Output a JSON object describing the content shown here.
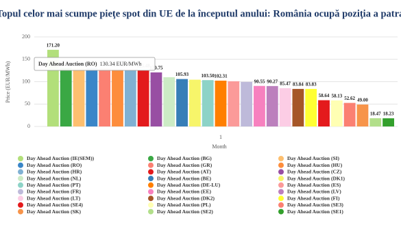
{
  "chart_data": {
    "type": "bar",
    "title": "Topul celor mai scumpe pieţe spot din UE de la începutul anului: România ocupă poziţia a patra",
    "xlabel": "Month",
    "ylabel": "Price (EUR/MWh)",
    "categories": [
      "1"
    ],
    "ylim": [
      0,
      200
    ],
    "yticks": [
      0,
      50,
      100,
      150,
      200
    ],
    "grid": true,
    "tooltip": {
      "series": "Day Ahead Auction (RO)",
      "value": "130.34 EUR/MWh"
    },
    "series": [
      {
        "name": "Day Ahead Auction (IE(SEM))",
        "color": "#b2df7a",
        "values": [
          171.2
        ],
        "value_labels": [
          "171.20"
        ]
      },
      {
        "name": "Day Ahead Auction (BG)",
        "color": "#3aa844",
        "values": [
          130.6
        ]
      },
      {
        "name": "Day Ahead Auction (SI)",
        "color": "#fdbf6f",
        "values": [
          130.4
        ]
      },
      {
        "name": "Day Ahead Auction (RO)",
        "color": "#3a86c8",
        "values": [
          130.34
        ]
      },
      {
        "name": "Day Ahead Auction (GR)",
        "color": "#fb8072",
        "values": [
          129.5
        ]
      },
      {
        "name": "Day Ahead Auction (HU)",
        "color": "#fd8d3c",
        "values": [
          127.92
        ],
        "value_labels": [
          "127.92"
        ]
      },
      {
        "name": "Day Ahead Auction (HR)",
        "color": "#80b1d3",
        "values": [
          126.5
        ]
      },
      {
        "name": "Day Ahead Auction (AT)",
        "color": "#e31a1c",
        "values": [
          125.48
        ],
        "value_labels": [
          "125.48"
        ]
      },
      {
        "name": "Day Ahead Auction (CZ)",
        "color": "#984ea3",
        "values": [
          120.75
        ],
        "value_labels": [
          "120.75"
        ]
      },
      {
        "name": "Day Ahead Auction (NL)",
        "color": "#ccebc5",
        "values": [
          110.0
        ]
      },
      {
        "name": "Day Ahead Auction (BE)",
        "color": "#377eb8",
        "values": [
          105.93
        ],
        "value_labels": [
          "105.93"
        ]
      },
      {
        "name": "Day Ahead Auction (DK1)",
        "color": "#f7f56a",
        "values": [
          104.5
        ]
      },
      {
        "name": "Day Ahead Auction (PT)",
        "color": "#8dd3c7",
        "values": [
          103.5
        ],
        "value_labels": [
          "103.50"
        ]
      },
      {
        "name": "Day Ahead Auction (DE-LU)",
        "color": "#ff7f00",
        "values": [
          102.31
        ],
        "value_labels": [
          "102.31"
        ]
      },
      {
        "name": "Day Ahead Auction (ES)",
        "color": "#fb9a99",
        "values": [
          101.0
        ]
      },
      {
        "name": "Day Ahead Auction (FR)",
        "color": "#bebada",
        "values": [
          99.5
        ]
      },
      {
        "name": "Day Ahead Auction (EE)",
        "color": "#f781bf",
        "values": [
          90.55
        ],
        "value_labels": [
          "90.55"
        ]
      },
      {
        "name": "Day Ahead Auction (LV)",
        "color": "#bc80bd",
        "values": [
          90.27
        ],
        "value_labels": [
          "90.27"
        ]
      },
      {
        "name": "Day Ahead Auction (LT)",
        "color": "#fccde5",
        "values": [
          85.47
        ],
        "value_labels": [
          "85.47"
        ]
      },
      {
        "name": "Day Ahead Auction (DK2)",
        "color": "#a65628",
        "values": [
          83.84
        ],
        "value_labels": [
          "83.84"
        ]
      },
      {
        "name": "Day Ahead Auction (FI)",
        "color": "#ffff33",
        "values": [
          83.83
        ],
        "value_labels": [
          "83.83"
        ]
      },
      {
        "name": "Day Ahead Auction (SE4)",
        "color": "#e41a1c",
        "values": [
          58.64
        ],
        "value_labels": [
          "58.64"
        ]
      },
      {
        "name": "Day Ahead Auction (PL)",
        "color": "#ffffb3",
        "values": [
          58.13
        ],
        "value_labels": [
          "58.13"
        ]
      },
      {
        "name": "Day Ahead Auction (SE3)",
        "color": "#fb8072",
        "values": [
          52.62
        ],
        "value_labels": [
          "52.62"
        ]
      },
      {
        "name": "Day Ahead Auction (SK)",
        "color": "#f7944a",
        "values": [
          49.0
        ],
        "value_labels": [
          "49.00"
        ]
      },
      {
        "name": "Day Ahead Auction (SE2)",
        "color": "#b2df8a",
        "values": [
          18.47
        ],
        "value_labels": [
          "18.47"
        ]
      },
      {
        "name": "Day Ahead Auction (SE1)",
        "color": "#33a02c",
        "values": [
          18.23
        ],
        "value_labels": [
          "18.23"
        ]
      }
    ]
  }
}
